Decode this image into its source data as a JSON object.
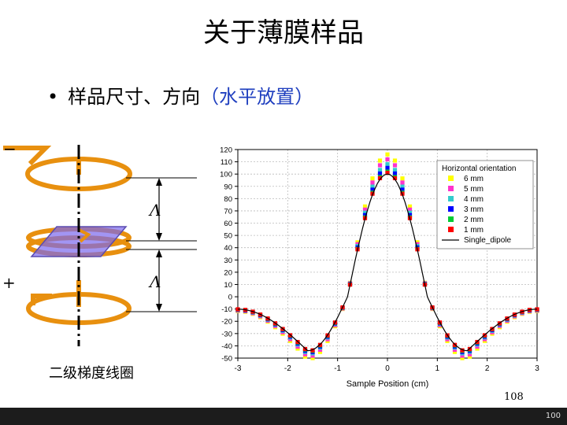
{
  "slide": {
    "title": "关于薄膜样品",
    "bullet": "•",
    "subtitle_main": "样品尺寸、方向",
    "subtitle_paren": "（水平放置）",
    "coil_label": "二级梯度线圈",
    "page_number": "108",
    "footer_number": "100"
  },
  "diagram": {
    "minus_sign": "−",
    "plus_sign": "+",
    "lambda_upper": "Λ",
    "lambda_lower": "Λ",
    "coil_color": "#E8900F",
    "sample_color": "#7B68EE"
  },
  "chart_data": {
    "type": "scatter",
    "xlabel": "Sample Position (cm)",
    "ylabel": "",
    "xlim": [
      -3,
      3
    ],
    "ylim": [
      -50,
      120
    ],
    "xticks": [
      "-3",
      "-2",
      "-1",
      "0",
      "1",
      "2",
      "3"
    ],
    "yticks": [
      "-50",
      "-40",
      "-30",
      "-20",
      "-10",
      "0",
      "10",
      "20",
      "30",
      "40",
      "50",
      "60",
      "70",
      "80",
      "90",
      "100",
      "110",
      "120"
    ],
    "grid": true,
    "legend_position": "top-right",
    "legend_title": "Horizontal orientation",
    "series": [
      {
        "name": "6 mm",
        "color": "#ffff00",
        "peak": 116,
        "trough": -51
      },
      {
        "name": "5 mm",
        "color": "#ff33cc",
        "peak": 112,
        "trough": -49
      },
      {
        "name": "4 mm",
        "color": "#33cccc",
        "peak": 108,
        "trough": -47
      },
      {
        "name": "3 mm",
        "color": "#0000ff",
        "peak": 105,
        "trough": -46
      },
      {
        "name": "2 mm",
        "color": "#00cc33",
        "peak": 102,
        "trough": -45
      },
      {
        "name": "1 mm",
        "color": "#ff0000",
        "peak": 101,
        "trough": -44.5
      },
      {
        "name": "Single_dipole",
        "color": "#000000",
        "peak": 100,
        "trough": -44
      }
    ],
    "sample_x": [
      -3,
      -2.85,
      -2.7,
      -2.55,
      -2.4,
      -2.25,
      -2.1,
      -1.95,
      -1.8,
      -1.65,
      -1.5,
      -1.35,
      -1.2,
      -1.05,
      -0.9,
      -0.75,
      -0.6,
      -0.45,
      -0.3,
      -0.15,
      0,
      0.15,
      0.3,
      0.45,
      0.6,
      0.75,
      0.9,
      1.05,
      1.2,
      1.35,
      1.5,
      1.65,
      1.8,
      1.95,
      2.1,
      2.25,
      2.4,
      2.55,
      2.7,
      2.85,
      3
    ]
  }
}
